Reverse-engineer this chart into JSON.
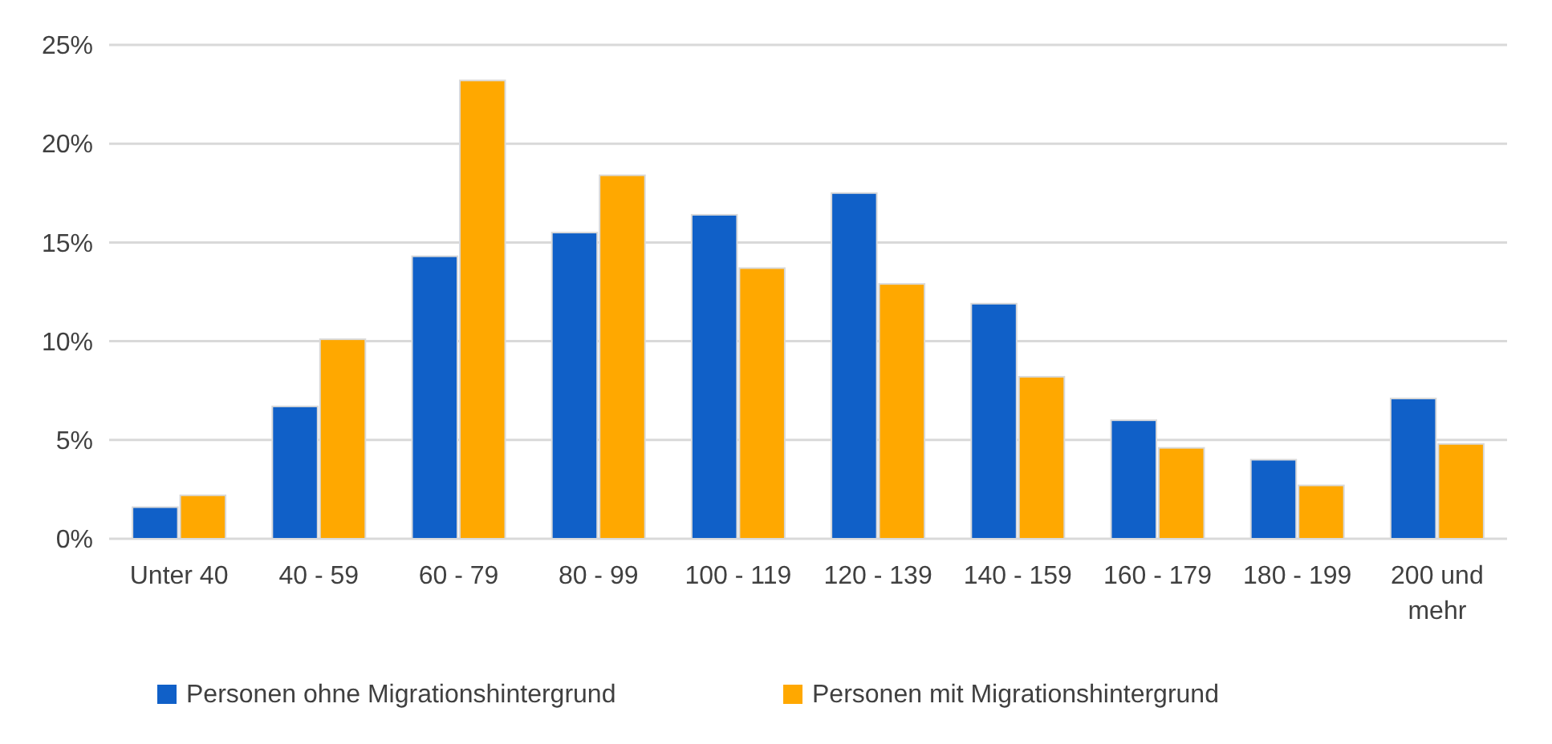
{
  "chart_data": {
    "type": "bar",
    "categories": [
      "Unter 40",
      "40 - 59",
      "60 - 79",
      "80 - 99",
      "100 - 119",
      "120 - 139",
      "140 - 159",
      "160 - 179",
      "180 - 199",
      "200 und mehr"
    ],
    "series": [
      {
        "name": "Personen ohne Migrationshintergrund",
        "color": "#1060c8",
        "values": [
          1.6,
          6.7,
          14.3,
          15.5,
          16.4,
          17.5,
          11.9,
          6.0,
          4.0,
          7.1
        ]
      },
      {
        "name": "Personen mit Migrationshintergrund",
        "color": "#ffa800",
        "values": [
          2.2,
          10.1,
          23.2,
          18.4,
          13.7,
          12.9,
          8.2,
          4.6,
          2.7,
          4.8
        ]
      }
    ],
    "ylim": [
      0,
      25
    ],
    "yticks": [
      {
        "value": 0,
        "label": "0%"
      },
      {
        "value": 5,
        "label": "5%"
      },
      {
        "value": 10,
        "label": "10%"
      },
      {
        "value": 15,
        "label": "15%"
      },
      {
        "value": 20,
        "label": "20%"
      },
      {
        "value": 25,
        "label": "25%"
      }
    ],
    "grid": "y",
    "legend": "bottom"
  }
}
